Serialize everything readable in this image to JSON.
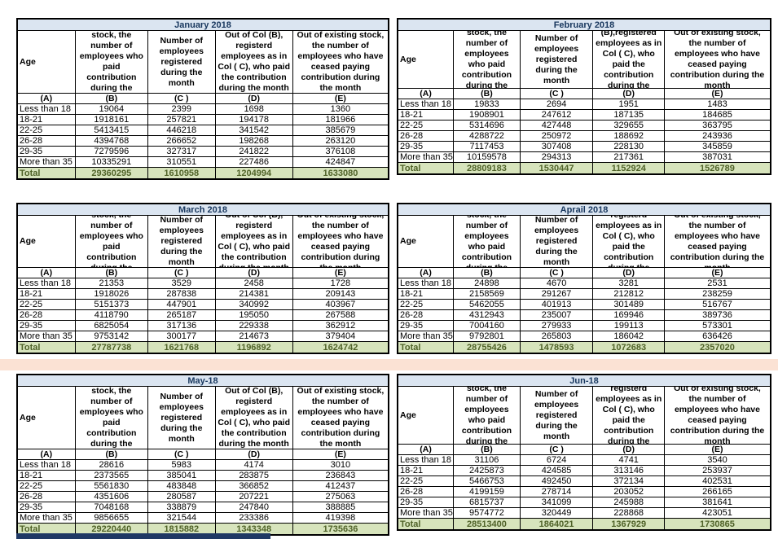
{
  "colors": {
    "title_bg": "#dbe5f1",
    "title_text": "#17365d",
    "total_bg": "#d7e4bc",
    "total_text": "#4f6228",
    "band_peach": "#fbe2d4",
    "bottom_bar": "#1f3864",
    "border": "#000000"
  },
  "col_letters": [
    "(A)",
    "(B)",
    "(C )",
    "(D)",
    "(E)"
  ],
  "tables": [
    {
      "title": "January 2018",
      "headers": [
        "Age",
        "Out of existing stock, the number of employees who paid contribution during the month",
        "Number of employees registered during the month",
        "Out of Col (B), registerd employees as in Col ( C), who paid the contribution during the month",
        "Out of existing stock, the number of  employees who have ceased paying contribution during the month"
      ],
      "rows": [
        [
          "Less than 18",
          "19064",
          "2399",
          "1698",
          "1360"
        ],
        [
          "18-21",
          "1918161",
          "257821",
          "194178",
          "181966"
        ],
        [
          "22-25",
          "5413415",
          "446218",
          "341542",
          "385679"
        ],
        [
          "26-28",
          "4394768",
          "266652",
          "198268",
          "263120"
        ],
        [
          "29-35",
          "7279596",
          "327317",
          "241822",
          "376108"
        ],
        [
          "More than 35",
          "10335291",
          "310551",
          "227486",
          "424847"
        ]
      ],
      "total": [
        "Total",
        "29360295",
        "1610958",
        "1204994",
        "1633080"
      ]
    },
    {
      "title": "February 2018",
      "headers": [
        "Age",
        "Out of existing stock, the number of employees who paid contribution during the month",
        "Number of employees registered during the month",
        "Out of Col (B),registered employees as in Col ( C), who paid the contribution during the month",
        "Out of existing stock, the number of employees  who have ceased paying contribution during the month"
      ],
      "rows": [
        [
          "Less than 18",
          "19833",
          "2694",
          "1951",
          "1483"
        ],
        [
          "18-21",
          "1908901",
          "247612",
          "187135",
          "184685"
        ],
        [
          "22-25",
          "5314696",
          "427448",
          "329655",
          "363795"
        ],
        [
          "26-28",
          "4288722",
          "250972",
          "188692",
          "243936"
        ],
        [
          "29-35",
          "7117453",
          "307408",
          "228130",
          "345859"
        ],
        [
          "More than 35",
          "10159578",
          "294313",
          "217361",
          "387031"
        ]
      ],
      "total": [
        "Total",
        "28809183",
        "1530447",
        "1152924",
        "1526789"
      ]
    },
    {
      "title": "March 2018",
      "headers": [
        "Age",
        "Out of existing stock, the number of employees who paid contribution during the month",
        "Number of employees registered during the month",
        "Out of Col (B), registerd employees as in Col ( C), who paid the contribution during the month",
        "Out of existing stock, the number of  employees who have ceased paying contribution during the month"
      ],
      "rows": [
        [
          "Less than 18",
          "21353",
          "3529",
          "2458",
          "1728"
        ],
        [
          "18-21",
          "1918026",
          "287838",
          "214381",
          "209143"
        ],
        [
          "22-25",
          "5151373",
          "447901",
          "340992",
          "403967"
        ],
        [
          "26-28",
          "4118790",
          "265187",
          "195050",
          "267588"
        ],
        [
          "29-35",
          "6825054",
          "317136",
          "229338",
          "362912"
        ],
        [
          "More than 35",
          "9753142",
          "300177",
          "214673",
          "379404"
        ]
      ],
      "total": [
        "Total",
        "27787738",
        "1621768",
        "1196892",
        "1624742"
      ]
    },
    {
      "title": "Aprail 2018",
      "headers": [
        "Age",
        "Out of existing stock, the number of employees who paid contribution during the month",
        "Number of employees registered during the month",
        "Out of Col (B), registerd employees as in Col ( C), who paid the contribution during the month",
        "Out of existing stock, the number of employees  who have ceased paying contribution during the month"
      ],
      "rows": [
        [
          "Less than 18",
          "24898",
          "4670",
          "3281",
          "2531"
        ],
        [
          "18-21",
          "2158569",
          "291267",
          "212812",
          "238259"
        ],
        [
          "22-25",
          "5462055",
          "401913",
          "301489",
          "516767"
        ],
        [
          "26-28",
          "4312943",
          "235007",
          "169946",
          "389736"
        ],
        [
          "29-35",
          "7004160",
          "279933",
          "199113",
          "573301"
        ],
        [
          "More than 35",
          "9792801",
          "265803",
          "186042",
          "636426"
        ]
      ],
      "total": [
        "Total",
        "28755426",
        "1478593",
        "1072683",
        "2357020"
      ]
    },
    {
      "title": "May-18",
      "headers": [
        "Age",
        "Out of existing stock, the number of employees who paid contribution during the month",
        "Number of employees registered during the month",
        "Out of Col (B), registerd employees as in Col ( C), who paid the contribution during the month",
        "Out of existing stock, the number of  employees who have ceased paying contribution during the month"
      ],
      "rows": [
        [
          "Less than 18",
          "28616",
          "5983",
          "4174",
          "3010"
        ],
        [
          "18-21",
          "2373565",
          "385041",
          "283875",
          "236843"
        ],
        [
          "22-25",
          "5561830",
          "483848",
          "366852",
          "412437"
        ],
        [
          "26-28",
          "4351606",
          "280587",
          "207221",
          "275063"
        ],
        [
          "29-35",
          "7048168",
          "338879",
          "247840",
          "388885"
        ],
        [
          "More than 35",
          "9856655",
          "321544",
          "233386",
          "419398"
        ]
      ],
      "total": [
        "Total",
        "29220440",
        "1815882",
        "1343348",
        "1735636"
      ]
    },
    {
      "title": "Jun-18",
      "headers": [
        "Age",
        "Out of existing stock, the number of employees who paid contribution during the month",
        "Number of employees registered during the month",
        "Out of Col (B), registerd employees as in Col ( C), who paid the contribution during the month",
        "Out of existing stock, the number of employees  who have ceased paying contribution during the month"
      ],
      "rows": [
        [
          "Less than 18",
          "31106",
          "6724",
          "4741",
          "3540"
        ],
        [
          "18-21",
          "2425873",
          "424585",
          "313146",
          "253937"
        ],
        [
          "22-25",
          "5466753",
          "492450",
          "372134",
          "402531"
        ],
        [
          "26-28",
          "4199159",
          "278714",
          "203052",
          "266165"
        ],
        [
          "29-35",
          "6815737",
          "341099",
          "245988",
          "381641"
        ],
        [
          "More than 35",
          "9574772",
          "320449",
          "228868",
          "423051"
        ]
      ],
      "total": [
        "Total",
        "28513400",
        "1864021",
        "1367929",
        "1730865"
      ]
    }
  ]
}
